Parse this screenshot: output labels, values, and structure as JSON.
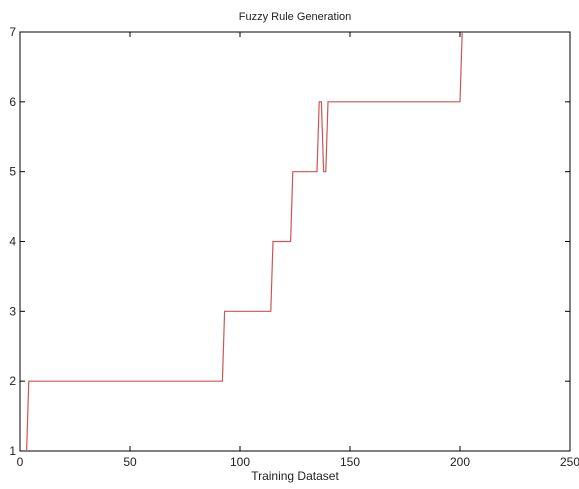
{
  "chart_data": {
    "type": "line",
    "title": "Fuzzy Rule Generation",
    "xlabel": "Training Dataset",
    "ylabel": "",
    "xlim": [
      0,
      250
    ],
    "ylim": [
      1,
      7
    ],
    "xticks": [
      0,
      50,
      100,
      150,
      200,
      250
    ],
    "yticks": [
      1,
      2,
      3,
      4,
      5,
      6,
      7
    ],
    "xtick_labels": [
      "0",
      "50",
      "100",
      "150",
      "200",
      "250"
    ],
    "ytick_labels": [
      "1",
      "2",
      "3",
      "4",
      "5",
      "6",
      "7"
    ],
    "grid": false,
    "legend": "none",
    "series": [
      {
        "color": "#cc5555",
        "x": [
          3,
          4,
          92,
          93,
          114,
          115,
          123,
          124,
          135,
          136,
          137,
          138,
          139,
          140,
          200,
          201
        ],
        "y": [
          1,
          2,
          2,
          3,
          3,
          4,
          4,
          5,
          5,
          6,
          6,
          5,
          5,
          6,
          6,
          7
        ]
      }
    ]
  }
}
